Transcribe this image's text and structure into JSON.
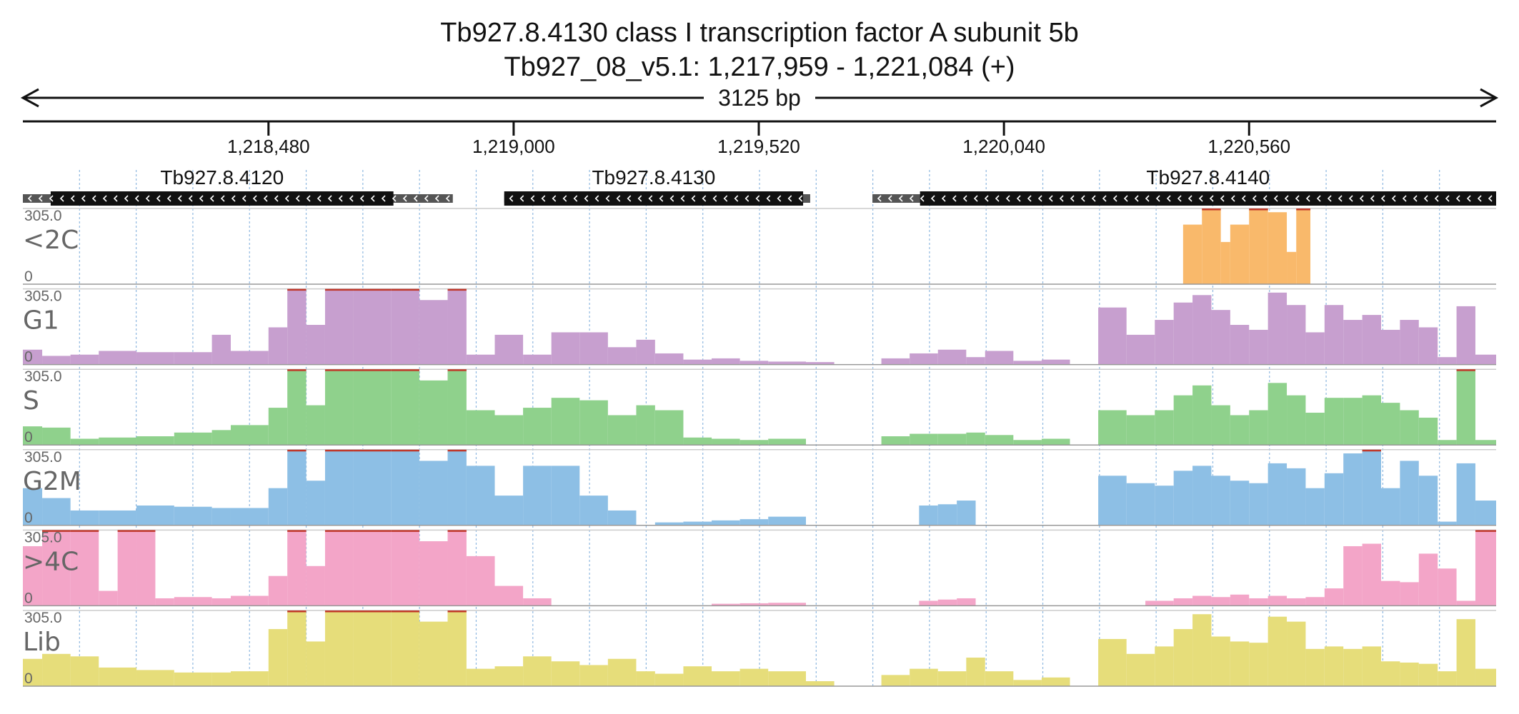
{
  "header": {
    "title_line1": "Tb927.8.4130  class I transcription factor A  subunit 5b",
    "title_line2": "Tb927_08_v5.1: 1,217,959 - 1,221,084 (+)",
    "span_label": "3125 bp"
  },
  "chart_data": {
    "type": "area",
    "region": {
      "start": 1217959,
      "end": 1221084
    },
    "ticks": [
      {
        "pos": 1218480,
        "label": "1,218,480"
      },
      {
        "pos": 1219000,
        "label": "1,219,000"
      },
      {
        "pos": 1219520,
        "label": "1,219,520"
      },
      {
        "pos": 1220040,
        "label": "1,220,040"
      },
      {
        "pos": 1220560,
        "label": "1,220,560"
      }
    ],
    "genes": [
      {
        "name": "Tb927.8.4120",
        "strand": "-",
        "start": 1217959,
        "end": 1218871,
        "cds_start": 1218018,
        "cds_end": 1218745
      },
      {
        "name": "Tb927.8.4130",
        "strand": "-",
        "start": 1218980,
        "end": 1219629,
        "cds_start": 1218980,
        "cds_end": 1219614
      },
      {
        "name": "Tb927.8.4140",
        "strand": "-",
        "start": 1219761,
        "end": 1221084,
        "cds_start": 1219862,
        "cds_end": 1221084
      }
    ],
    "y_max": 305.0,
    "y_max_label": "305.0",
    "y_min_label": "0",
    "grid": true,
    "tracks": [
      {
        "name": "<2C",
        "color": "#f9b96b",
        "segments": [
          {
            "x": [
              1220420,
              1220460,
              1220500,
              1220520,
              1220560,
              1220600,
              1220640,
              1220660,
              1220690
            ],
            "y": [
              240,
              305,
              170,
              240,
              305,
              290,
              130,
              305,
              305
            ]
          }
        ]
      },
      {
        "name": "G1",
        "color": "#c79fcf",
        "segments": [
          {
            "x": [
              1217959,
              1218000,
              1218060,
              1218120,
              1218200,
              1218280,
              1218360,
              1218400,
              1218480,
              1218520,
              1218560,
              1218600,
              1218660,
              1218740,
              1218800,
              1218860,
              1218900,
              1218960,
              1219020,
              1219080,
              1219140,
              1219200,
              1219260,
              1219300,
              1219360,
              1219420,
              1219480,
              1219540,
              1219620,
              1219680
            ],
            "y": [
              60,
              35,
              40,
              55,
              50,
              50,
              120,
              55,
              150,
              305,
              160,
              305,
              305,
              305,
              260,
              305,
              40,
              120,
              40,
              130,
              130,
              70,
              100,
              45,
              20,
              25,
              15,
              12,
              10,
              8
            ]
          },
          {
            "x": [
              1219780,
              1219840,
              1219900,
              1219960,
              1220000,
              1220060,
              1220120,
              1220180
            ],
            "y": [
              25,
              45,
              60,
              30,
              55,
              15,
              20,
              18
            ]
          },
          {
            "x": [
              1220240,
              1220300,
              1220360,
              1220400,
              1220440,
              1220480,
              1220520,
              1220560,
              1220600,
              1220640,
              1220680,
              1220720,
              1220760,
              1220800,
              1220840,
              1220880,
              1220920,
              1220960,
              1221000,
              1221040,
              1221084
            ],
            "y": [
              230,
              120,
              180,
              250,
              280,
              220,
              160,
              140,
              290,
              240,
              130,
              240,
              180,
              200,
              140,
              180,
              150,
              30,
              235,
              40,
              80
            ]
          }
        ]
      },
      {
        "name": "S",
        "color": "#8fd18c",
        "segments": [
          {
            "x": [
              1217959,
              1218000,
              1218060,
              1218120,
              1218200,
              1218280,
              1218360,
              1218400,
              1218480,
              1218520,
              1218560,
              1218600,
              1218660,
              1218740,
              1218800,
              1218860,
              1218900,
              1218960,
              1219020,
              1219080,
              1219140,
              1219200,
              1219260,
              1219300,
              1219360,
              1219420,
              1219480,
              1219540,
              1219620
            ],
            "y": [
              75,
              70,
              25,
              30,
              35,
              50,
              60,
              80,
              150,
              305,
              160,
              305,
              305,
              305,
              260,
              305,
              140,
              120,
              150,
              190,
              180,
              120,
              160,
              140,
              30,
              25,
              20,
              25,
              20
            ]
          },
          {
            "x": [
              1219780,
              1219840,
              1219900,
              1219960,
              1220000,
              1220060,
              1220120,
              1220180
            ],
            "y": [
              35,
              45,
              45,
              50,
              40,
              20,
              25,
              20
            ]
          },
          {
            "x": [
              1220240,
              1220300,
              1220360,
              1220400,
              1220440,
              1220480,
              1220520,
              1220560,
              1220600,
              1220640,
              1220680,
              1220720,
              1220760,
              1220800,
              1220840,
              1220880,
              1220920,
              1220960,
              1221000,
              1221040,
              1221084
            ],
            "y": [
              140,
              120,
              140,
              200,
              240,
              160,
              120,
              140,
              250,
              200,
              130,
              190,
              190,
              200,
              170,
              140,
              110,
              20,
              305,
              20,
              60
            ]
          }
        ]
      },
      {
        "name": "G2M",
        "color": "#8dbfe5",
        "segments": [
          {
            "x": [
              1217959,
              1218000,
              1218060,
              1218120,
              1218200,
              1218280,
              1218360,
              1218400,
              1218480,
              1218520,
              1218560,
              1218600,
              1218660,
              1218740,
              1218800,
              1218860,
              1218900,
              1218960,
              1219020,
              1219080,
              1219140,
              1219200,
              1219260
            ],
            "y": [
              150,
              110,
              60,
              60,
              80,
              75,
              70,
              70,
              150,
              305,
              180,
              305,
              305,
              305,
              260,
              305,
              240,
              120,
              240,
              240,
              120,
              60,
              130
            ]
          },
          {
            "x": [
              1219300,
              1219360,
              1219420,
              1219480,
              1219540,
              1219620
            ],
            "y": [
              12,
              15,
              20,
              25,
              35,
              15
            ]
          },
          {
            "x": [
              1219860,
              1219900,
              1219940,
              1219980
            ],
            "y": [
              80,
              85,
              100,
              80
            ]
          },
          {
            "x": [
              1220240,
              1220300,
              1220360,
              1220400,
              1220440,
              1220480,
              1220520,
              1220560,
              1220600,
              1220640,
              1220680,
              1220720,
              1220760,
              1220800,
              1220840,
              1220880,
              1220920,
              1220960,
              1221000,
              1221040,
              1221084
            ],
            "y": [
              200,
              170,
              160,
              220,
              240,
              200,
              180,
              170,
              250,
              230,
              150,
              210,
              290,
              305,
              150,
              260,
              200,
              15,
              250,
              100,
              40
            ]
          }
        ]
      },
      {
        "name": ">4C",
        "color": "#f3a5c8",
        "segments": [
          {
            "x": [
              1217959,
              1218000,
              1218060,
              1218120,
              1218160,
              1218200,
              1218240,
              1218280,
              1218360,
              1218400,
              1218480,
              1218520,
              1218560,
              1218600,
              1218660,
              1218740,
              1218800,
              1218860,
              1218900,
              1218960,
              1219020,
              1219080
            ],
            "y": [
              240,
              305,
              305,
              60,
              305,
              305,
              30,
              35,
              30,
              40,
              120,
              305,
              160,
              305,
              305,
              305,
              260,
              305,
              200,
              80,
              30,
              120
            ]
          },
          {
            "x": [
              1219420,
              1219480,
              1219540,
              1219620
            ],
            "y": [
              8,
              10,
              12,
              10
            ]
          },
          {
            "x": [
              1219860,
              1219900,
              1219940,
              1219980
            ],
            "y": [
              20,
              25,
              30,
              25
            ]
          },
          {
            "x": [
              1220340,
              1220400,
              1220440,
              1220480,
              1220520,
              1220560,
              1220600,
              1220640,
              1220680,
              1220720,
              1220760,
              1220800,
              1220840,
              1220880,
              1220920,
              1220960,
              1221000,
              1221040,
              1221084
            ],
            "y": [
              20,
              30,
              40,
              35,
              45,
              30,
              40,
              30,
              35,
              70,
              240,
              250,
              100,
              95,
              210,
              150,
              20,
              305,
              70
            ]
          }
        ]
      },
      {
        "name": "Lib",
        "color": "#e6dd7a",
        "segments": [
          {
            "x": [
              1217959,
              1218000,
              1218060,
              1218120,
              1218200,
              1218280,
              1218360,
              1218400,
              1218480,
              1218520,
              1218560,
              1218600,
              1218660,
              1218740,
              1218800,
              1218860,
              1218900,
              1218960,
              1219020,
              1219080,
              1219140,
              1219200,
              1219260,
              1219300,
              1219360,
              1219420,
              1219480,
              1219540,
              1219620,
              1219680
            ],
            "y": [
              110,
              130,
              120,
              75,
              65,
              55,
              55,
              60,
              230,
              305,
              180,
              305,
              305,
              305,
              260,
              305,
              70,
              80,
              120,
              100,
              85,
              110,
              60,
              50,
              80,
              60,
              70,
              60,
              20,
              5
            ]
          },
          {
            "x": [
              1219780,
              1219840,
              1219900,
              1219960,
              1220000,
              1220060,
              1220120,
              1220180
            ],
            "y": [
              45,
              70,
              60,
              115,
              60,
              25,
              35,
              30
            ]
          },
          {
            "x": [
              1220240,
              1220300,
              1220360,
              1220400,
              1220440,
              1220480,
              1220520,
              1220560,
              1220600,
              1220640,
              1220680,
              1220720,
              1220760,
              1220800,
              1220840,
              1220880,
              1220920,
              1220960,
              1221000,
              1221040,
              1221084
            ],
            "y": [
              190,
              130,
              160,
              230,
              290,
              200,
              180,
              175,
              280,
              260,
              150,
              160,
              150,
              160,
              100,
              95,
              90,
              60,
              270,
              70,
              30
            ]
          }
        ]
      }
    ]
  }
}
